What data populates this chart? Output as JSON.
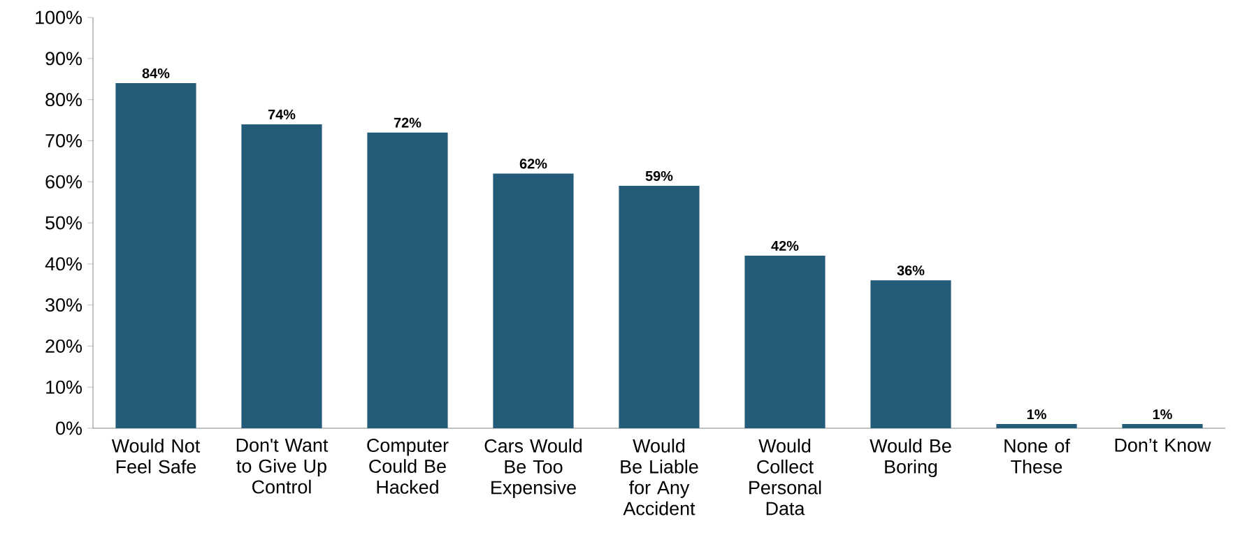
{
  "chart_data": {
    "type": "bar",
    "categories": [
      "Would Not Feel Safe",
      "Don't Want to Give Up Control",
      "Computer Could Be Hacked",
      "Cars Would Be Too Expensive",
      "Would Be Liable for Any Accident",
      "Would Collect Personal Data",
      "Would Be Boring",
      "None of These",
      "Don’t Know"
    ],
    "values": [
      84,
      74,
      72,
      62,
      59,
      42,
      36,
      1,
      1
    ],
    "value_labels": [
      "84%",
      "74%",
      "72%",
      "62%",
      "59%",
      "42%",
      "36%",
      "1%",
      "1%"
    ],
    "color": "#235b78",
    "ylim": [
      0,
      100
    ],
    "yticks": [
      {
        "value": 0,
        "label": "0%"
      },
      {
        "value": 10,
        "label": "10%"
      },
      {
        "value": 20,
        "label": "20%"
      },
      {
        "value": 30,
        "label": "30%"
      },
      {
        "value": 40,
        "label": "40%"
      },
      {
        "value": 50,
        "label": "50%"
      },
      {
        "value": 60,
        "label": "60%"
      },
      {
        "value": 70,
        "label": "70%"
      },
      {
        "value": 80,
        "label": "80%"
      },
      {
        "value": 90,
        "label": "90%"
      },
      {
        "value": 100,
        "label": "100%"
      }
    ],
    "grid": false
  }
}
